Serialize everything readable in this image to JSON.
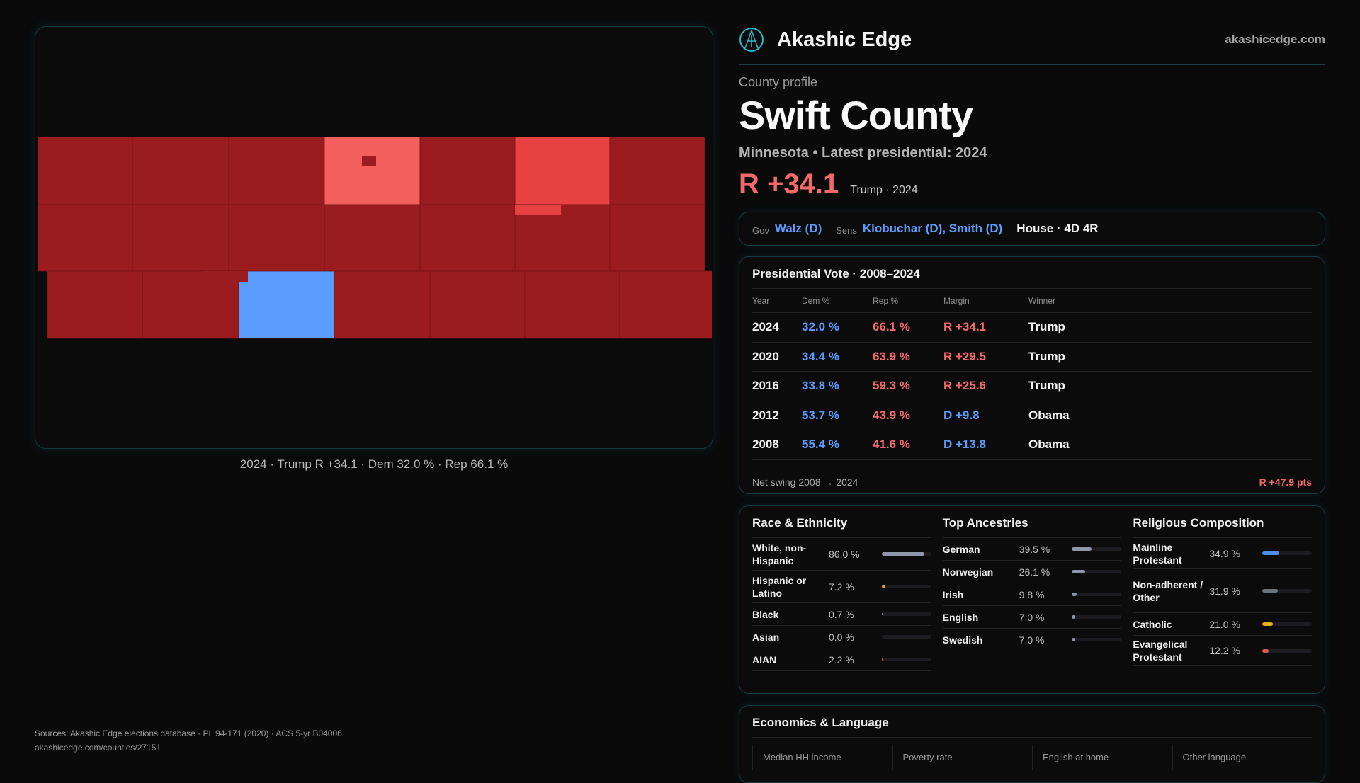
{
  "map": {
    "caption": "2024 · Trump R +34.1 · Dem 32.0 % · Rep 66.1 %",
    "colors": {
      "strong_rep": "#9b1c1f",
      "lean_rep": "#f25f5c",
      "likely_rep": "#e84142",
      "dem": "#5b9cff"
    }
  },
  "header": {
    "brand": "Akashic Edge",
    "url": "akashicedge.com"
  },
  "profile": {
    "kicker": "County profile",
    "title": "Swift County",
    "subtitle": "Minnesota • Latest presidential: 2024",
    "margin": "R +34.1",
    "margin_note": "Trump · 2024"
  },
  "officials": {
    "gov_label": "Gov",
    "gov": "Walz (D)",
    "sens_label": "Sens",
    "sens": "Klobuchar (D), Smith (D)",
    "house": "House · 4D 4R"
  },
  "presidential": {
    "title": "Presidential Vote · 2008–2024",
    "headers": [
      "Year",
      "Dem %",
      "Rep %",
      "Margin",
      "Winner"
    ],
    "rows": [
      {
        "year": "2024",
        "dem": "32.0 %",
        "rep": "66.1 %",
        "margin": "R +34.1",
        "winner": "Trump",
        "party": "R"
      },
      {
        "year": "2020",
        "dem": "34.4 %",
        "rep": "63.9 %",
        "margin": "R +29.5",
        "winner": "Trump",
        "party": "R"
      },
      {
        "year": "2016",
        "dem": "33.8 %",
        "rep": "59.3 %",
        "margin": "R +25.6",
        "winner": "Trump",
        "party": "R"
      },
      {
        "year": "2012",
        "dem": "53.7 %",
        "rep": "43.9 %",
        "margin": "D +9.8",
        "winner": "Obama",
        "party": "D"
      },
      {
        "year": "2008",
        "dem": "55.4 %",
        "rep": "41.6 %",
        "margin": "D +13.8",
        "winner": "Obama",
        "party": "D"
      }
    ],
    "swing_label": "Net swing 2008 → 2024",
    "swing_value": "R +47.9 pts"
  },
  "race": {
    "title": "Race & Ethnicity",
    "items": [
      {
        "label": "White, non-Hispanic",
        "value": "86.0 %",
        "pct": 86.0,
        "color": "#8d97a8"
      },
      {
        "label": "Hispanic or Latino",
        "value": "7.2 %",
        "pct": 7.2,
        "color": "#e0a020"
      },
      {
        "label": "Black",
        "value": "0.7 %",
        "pct": 0.7,
        "color": "#8d97a8"
      },
      {
        "label": "Asian",
        "value": "0.0 %",
        "pct": 0.0,
        "color": "#8d97a8"
      },
      {
        "label": "AIAN",
        "value": "2.2 %",
        "pct": 2.2,
        "color": "#c0602a"
      }
    ]
  },
  "ancestry": {
    "title": "Top Ancestries",
    "items": [
      {
        "label": "German",
        "value": "39.5 %",
        "pct": 39.5,
        "color": "#8d97a8"
      },
      {
        "label": "Norwegian",
        "value": "26.1 %",
        "pct": 26.1,
        "color": "#8d97a8"
      },
      {
        "label": "Irish",
        "value": "9.8 %",
        "pct": 9.8,
        "color": "#8d97a8"
      },
      {
        "label": "English",
        "value": "7.0 %",
        "pct": 7.0,
        "color": "#8d97a8"
      },
      {
        "label": "Swedish",
        "value": "7.0 %",
        "pct": 7.0,
        "color": "#8d97a8"
      }
    ]
  },
  "religion": {
    "title": "Religious Composition",
    "items": [
      {
        "label": "Mainline Protestant",
        "value": "34.9 %",
        "pct": 34.9,
        "color": "#4a8ee8"
      },
      {
        "label": "Non-adherent / Other",
        "value": "31.9 %",
        "pct": 31.9,
        "color": "#6b7280"
      },
      {
        "label": "Catholic",
        "value": "21.0 %",
        "pct": 21.0,
        "color": "#e0b020"
      },
      {
        "label": "Evangelical Protestant",
        "value": "12.2 %",
        "pct": 12.2,
        "color": "#e05858"
      }
    ]
  },
  "economics": {
    "title": "Economics & Language",
    "columns": [
      "Median HH income",
      "Poverty rate",
      "English at home",
      "Other language"
    ]
  },
  "footer": {
    "sources": "Sources: Akashic Edge elections database · PL 94-171 (2020) · ACS 5-yr B04006",
    "link": "akashicedge.com/counties/27151"
  }
}
